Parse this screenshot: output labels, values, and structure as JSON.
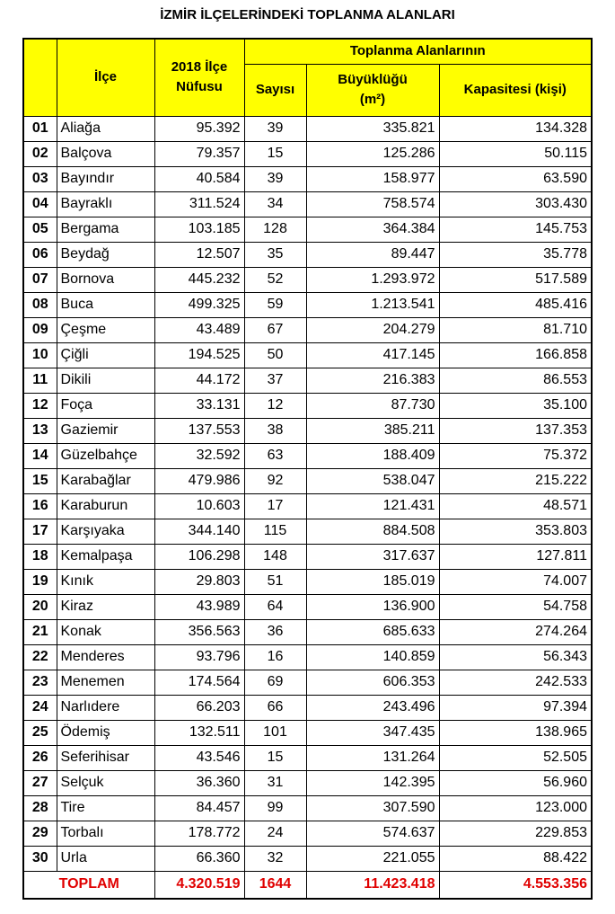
{
  "title": "İZMİR İLÇELERİNDEKİ TOPLANMA ALANLARI",
  "header": {
    "district": "İlçe",
    "population": "2018 İlçe Nüfusu",
    "group": "Toplanma Alanlarının",
    "count": "Sayısı",
    "size": "Büyüklüğü (m²)",
    "capacity": "Kapasitesi (kişi)"
  },
  "table": {
    "rows": [
      [
        "01",
        "Aliağa",
        "95.392",
        "39",
        "335.821",
        "134.328"
      ],
      [
        "02",
        "Balçova",
        "79.357",
        "15",
        "125.286",
        "50.115"
      ],
      [
        "03",
        "Bayındır",
        "40.584",
        "39",
        "158.977",
        "63.590"
      ],
      [
        "04",
        "Bayraklı",
        "311.524",
        "34",
        "758.574",
        "303.430"
      ],
      [
        "05",
        "Bergama",
        "103.185",
        "128",
        "364.384",
        "145.753"
      ],
      [
        "06",
        "Beydağ",
        "12.507",
        "35",
        "89.447",
        "35.778"
      ],
      [
        "07",
        "Bornova",
        "445.232",
        "52",
        "1.293.972",
        "517.589"
      ],
      [
        "08",
        "Buca",
        "499.325",
        "59",
        "1.213.541",
        "485.416"
      ],
      [
        "09",
        "Çeşme",
        "43.489",
        "67",
        "204.279",
        "81.710"
      ],
      [
        "10",
        "Çiğli",
        "194.525",
        "50",
        "417.145",
        "166.858"
      ],
      [
        "11",
        "Dikili",
        "44.172",
        "37",
        "216.383",
        "86.553"
      ],
      [
        "12",
        "Foça",
        "33.131",
        "12",
        "87.730",
        "35.100"
      ],
      [
        "13",
        "Gaziemir",
        "137.553",
        "38",
        "385.211",
        "137.353"
      ],
      [
        "14",
        "Güzelbahçe",
        "32.592",
        "63",
        "188.409",
        "75.372"
      ],
      [
        "15",
        "Karabağlar",
        "479.986",
        "92",
        "538.047",
        "215.222"
      ],
      [
        "16",
        "Karaburun",
        "10.603",
        "17",
        "121.431",
        "48.571"
      ],
      [
        "17",
        "Karşıyaka",
        "344.140",
        "115",
        "884.508",
        "353.803"
      ],
      [
        "18",
        "Kemalpaşa",
        "106.298",
        "148",
        "317.637",
        "127.811"
      ],
      [
        "19",
        "Kınık",
        "29.803",
        "51",
        "185.019",
        "74.007"
      ],
      [
        "20",
        "Kiraz",
        "43.989",
        "64",
        "136.900",
        "54.758"
      ],
      [
        "21",
        "Konak",
        "356.563",
        "36",
        "685.633",
        "274.264"
      ],
      [
        "22",
        "Menderes",
        "93.796",
        "16",
        "140.859",
        "56.343"
      ],
      [
        "23",
        "Menemen",
        "174.564",
        "69",
        "606.353",
        "242.533"
      ],
      [
        "24",
        "Narlıdere",
        "66.203",
        "66",
        "243.496",
        "97.394"
      ],
      [
        "25",
        "Ödemiş",
        "132.511",
        "101",
        "347.435",
        "138.965"
      ],
      [
        "26",
        "Seferihisar",
        "43.546",
        "15",
        "131.264",
        "52.505"
      ],
      [
        "27",
        "Selçuk",
        "36.360",
        "31",
        "142.395",
        "56.960"
      ],
      [
        "28",
        "Tire",
        "84.457",
        "99",
        "307.590",
        "123.000"
      ],
      [
        "29",
        "Torbalı",
        "178.772",
        "24",
        "574.637",
        "229.853"
      ],
      [
        "30",
        "Urla",
        "66.360",
        "32",
        "221.055",
        "88.422"
      ]
    ],
    "total": [
      "TOPLAM",
      "4.320.519",
      "1644",
      "11.423.418",
      "4.553.356"
    ]
  }
}
